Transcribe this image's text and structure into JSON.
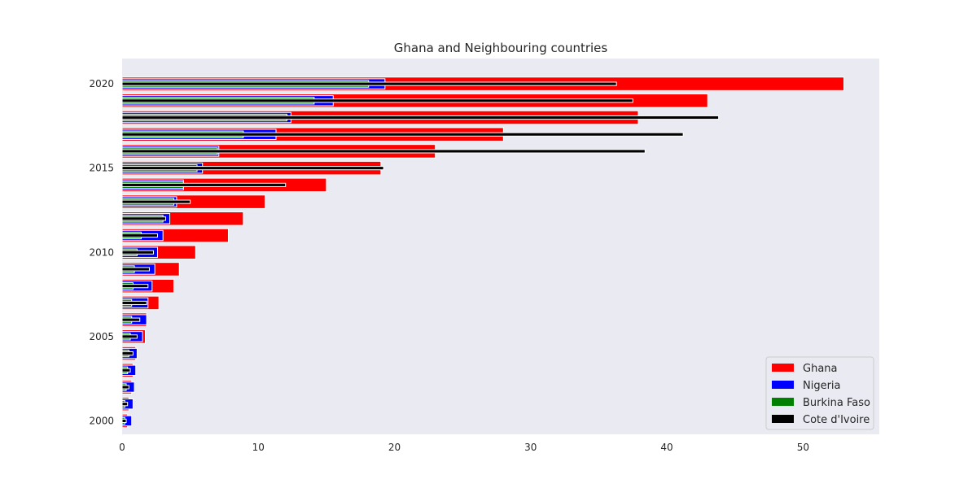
{
  "chart_data": {
    "type": "bar",
    "orientation": "horizontal",
    "title": "Ghana and Neighbouring countries",
    "xlabel": "",
    "ylabel": "",
    "xlim": [
      0,
      55.6
    ],
    "ylim": [
      1999.2,
      2021.5
    ],
    "x_ticks": [
      0,
      10,
      20,
      30,
      40,
      50
    ],
    "y_ticks": [
      2000,
      2005,
      2010,
      2015,
      2020
    ],
    "grid": false,
    "style": "seaborn-dark",
    "legend_position": "lower-right",
    "categories": [
      2000,
      2001,
      2002,
      2003,
      2004,
      2005,
      2006,
      2007,
      2008,
      2009,
      2010,
      2011,
      2012,
      2013,
      2014,
      2015,
      2016,
      2017,
      2018,
      2019,
      2020
    ],
    "series": [
      {
        "name": "Ghana",
        "color": "#ff0000",
        "values": [
          0.4,
          0.5,
          0.7,
          0.8,
          1.0,
          1.7,
          1.8,
          2.7,
          3.8,
          4.2,
          5.4,
          7.8,
          8.9,
          10.5,
          15.0,
          19.0,
          23.0,
          28.0,
          37.9,
          43.0,
          53.0
        ]
      },
      {
        "name": "Nigeria",
        "color": "#0000ff",
        "values": [
          0.7,
          0.8,
          0.9,
          1.0,
          1.1,
          1.5,
          1.8,
          1.9,
          2.2,
          2.4,
          2.6,
          3.0,
          3.5,
          4.0,
          4.5,
          5.9,
          7.1,
          11.3,
          12.4,
          15.5,
          19.3
        ]
      },
      {
        "name": "Burkina Faso",
        "color": "#008000",
        "values": [
          0.2,
          0.2,
          0.3,
          0.4,
          0.5,
          0.6,
          0.7,
          0.7,
          0.8,
          0.9,
          1.1,
          1.4,
          3.0,
          3.8,
          4.5,
          5.5,
          7.0,
          8.9,
          12.1,
          14.1,
          18.1
        ]
      },
      {
        "name": "Cote d'Ivoire",
        "color": "#000000",
        "values": [
          0.3,
          0.4,
          0.5,
          0.6,
          0.8,
          1.1,
          1.3,
          1.8,
          1.9,
          2.0,
          2.3,
          2.6,
          3.2,
          5.0,
          12.0,
          19.2,
          38.4,
          41.2,
          43.8,
          37.5,
          36.3
        ]
      }
    ]
  }
}
